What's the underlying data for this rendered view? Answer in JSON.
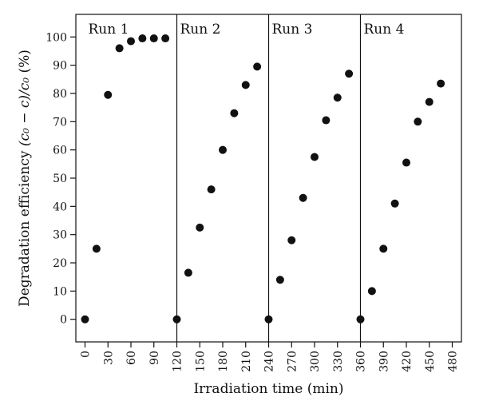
{
  "chart_data": {
    "type": "scatter",
    "title": "",
    "xlabel": "Irradiation time (min)",
    "ylabel": "Degradation efficiency",
    "ylabel_formula": "(c₀ − c)/c₀",
    "ylabel_unit": "(%)",
    "xlim": [
      -12,
      492
    ],
    "ylim": [
      -8,
      108
    ],
    "x_ticks": [
      0,
      30,
      60,
      90,
      120,
      150,
      180,
      210,
      240,
      270,
      300,
      330,
      360,
      390,
      420,
      450,
      480
    ],
    "x_tick_labels": [
      "0",
      "30",
      "60",
      "90",
      "120",
      "150",
      "180",
      "210",
      "240",
      "270",
      "300",
      "330",
      "360",
      "390",
      "420",
      "450",
      "480"
    ],
    "y_ticks": [
      0,
      10,
      20,
      30,
      40,
      50,
      60,
      70,
      80,
      90,
      100
    ],
    "y_tick_labels": [
      "0",
      "10",
      "20",
      "30",
      "40",
      "50",
      "60",
      "70",
      "80",
      "90",
      "100"
    ],
    "grid": false,
    "legend": "none",
    "marker_color": "#111111",
    "run_dividers": [
      120,
      240,
      360
    ],
    "runs": [
      {
        "label": "Run 1",
        "label_x": 120
      },
      {
        "label": "Run 2",
        "label_x": 240
      },
      {
        "label": "Run 3",
        "label_x": 360
      },
      {
        "label": "Run 4",
        "label_x": 480
      }
    ],
    "series": [
      {
        "x": [
          0,
          15,
          30,
          45,
          60,
          75,
          90,
          105
        ],
        "y": [
          0,
          25,
          79.5,
          96,
          98.5,
          99.5,
          99.5,
          99.5
        ]
      },
      {
        "x": [
          120,
          135,
          150,
          165,
          180,
          195,
          210,
          225
        ],
        "y": [
          0,
          16.5,
          32.5,
          46,
          60,
          73,
          83,
          89.5
        ]
      },
      {
        "x": [
          240,
          255,
          270,
          285,
          300,
          315,
          330,
          345
        ],
        "y": [
          0,
          14,
          28,
          43,
          57.5,
          70.5,
          78.5,
          87
        ]
      },
      {
        "x": [
          360,
          375,
          390,
          405,
          420,
          435,
          450,
          465
        ],
        "y": [
          0,
          10,
          25,
          41,
          55.5,
          70,
          77,
          83.5
        ]
      }
    ]
  }
}
